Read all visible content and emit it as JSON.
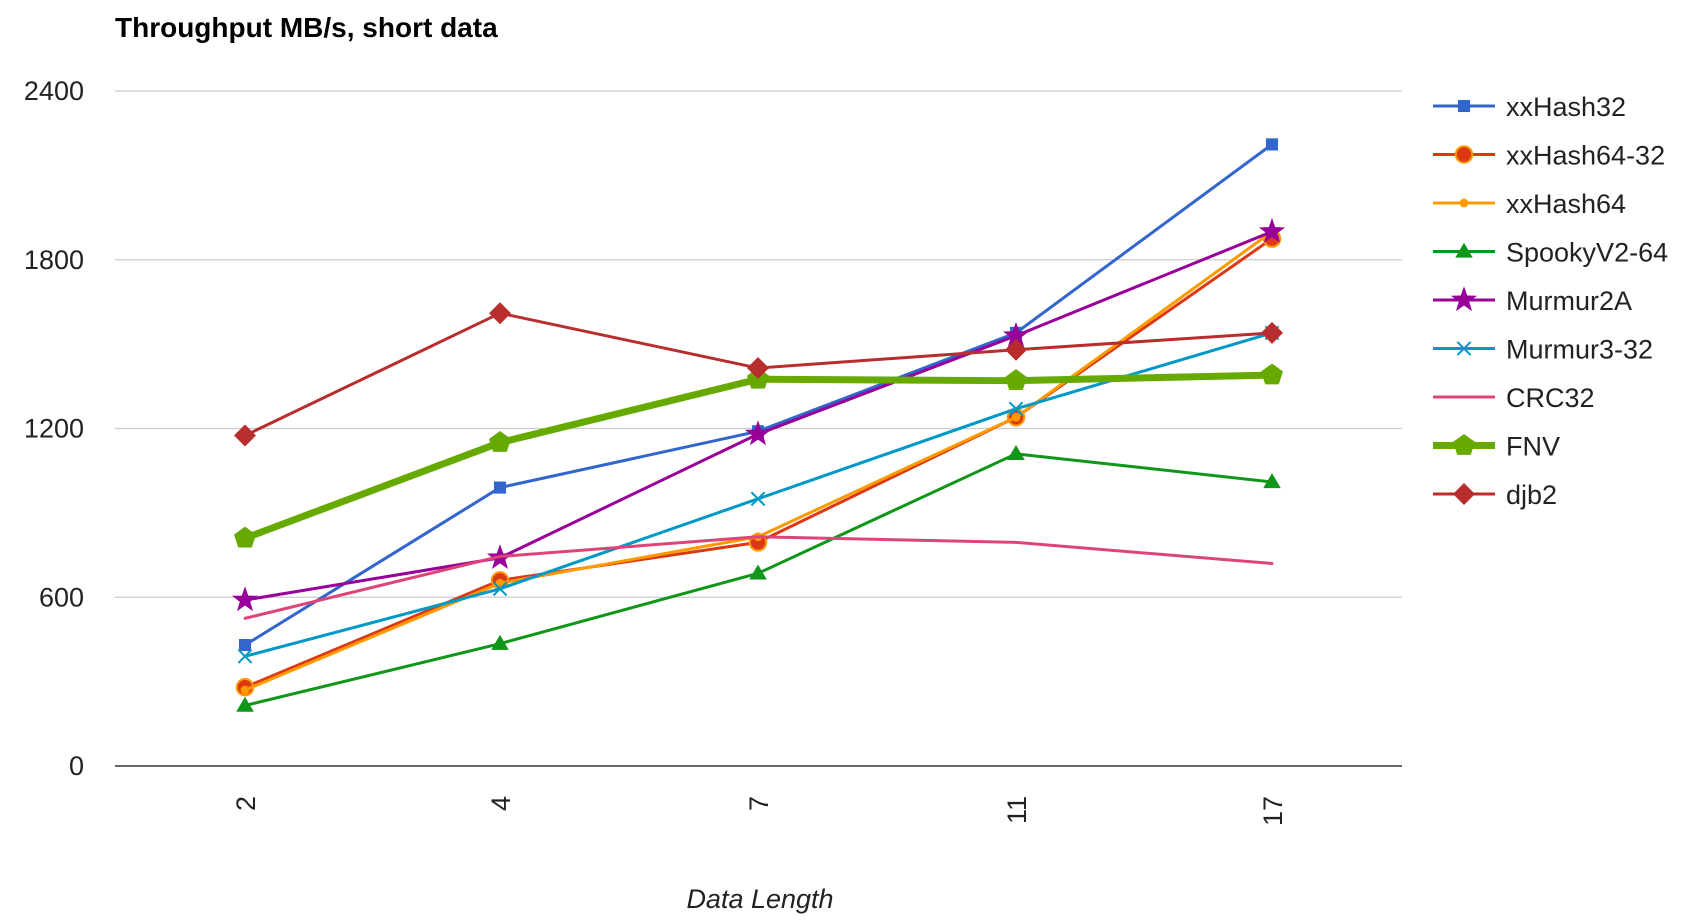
{
  "chart_data": {
    "type": "line",
    "title": "Throughput MB/s, short data",
    "xlabel": "Data Length",
    "ylabel": "",
    "categories": [
      "2",
      "4",
      "7",
      "11",
      "17"
    ],
    "ylim": [
      0,
      2400
    ],
    "yticks": [
      0,
      600,
      1200,
      1800,
      2400
    ],
    "grid": true,
    "legend_position": "right",
    "series": [
      {
        "name": "xxHash32",
        "values": [
          430,
          990,
          1190,
          1540,
          2210
        ],
        "color": "#3366cc",
        "marker": "square",
        "width": 3
      },
      {
        "name": "xxHash64-32",
        "values": [
          280,
          660,
          795,
          1240,
          1875
        ],
        "color": "#dc3912",
        "marker": "circle",
        "width": 3
      },
      {
        "name": "xxHash64",
        "values": [
          270,
          650,
          815,
          1240,
          1900
        ],
        "color": "#ff9900",
        "marker": "dot",
        "width": 3
      },
      {
        "name": "SpookyV2-64",
        "values": [
          215,
          435,
          685,
          1110,
          1010
        ],
        "color": "#109618",
        "marker": "triangle",
        "width": 3
      },
      {
        "name": "Murmur2A",
        "values": [
          590,
          740,
          1180,
          1530,
          1900
        ],
        "color": "#990099",
        "marker": "star",
        "width": 3
      },
      {
        "name": "Murmur3-32",
        "values": [
          390,
          630,
          950,
          1270,
          1540
        ],
        "color": "#0099c6",
        "marker": "x",
        "width": 3
      },
      {
        "name": "CRC32",
        "values": [
          525,
          745,
          815,
          795,
          720
        ],
        "color": "#dd4477",
        "marker": "none",
        "width": 3
      },
      {
        "name": "FNV",
        "values": [
          810,
          1150,
          1375,
          1370,
          1390
        ],
        "color": "#66aa00",
        "marker": "pentagon",
        "width": 7
      },
      {
        "name": "djb2",
        "values": [
          1175,
          1610,
          1415,
          1480,
          1540
        ],
        "color": "#b82e2e",
        "marker": "diamond",
        "width": 3
      }
    ]
  }
}
